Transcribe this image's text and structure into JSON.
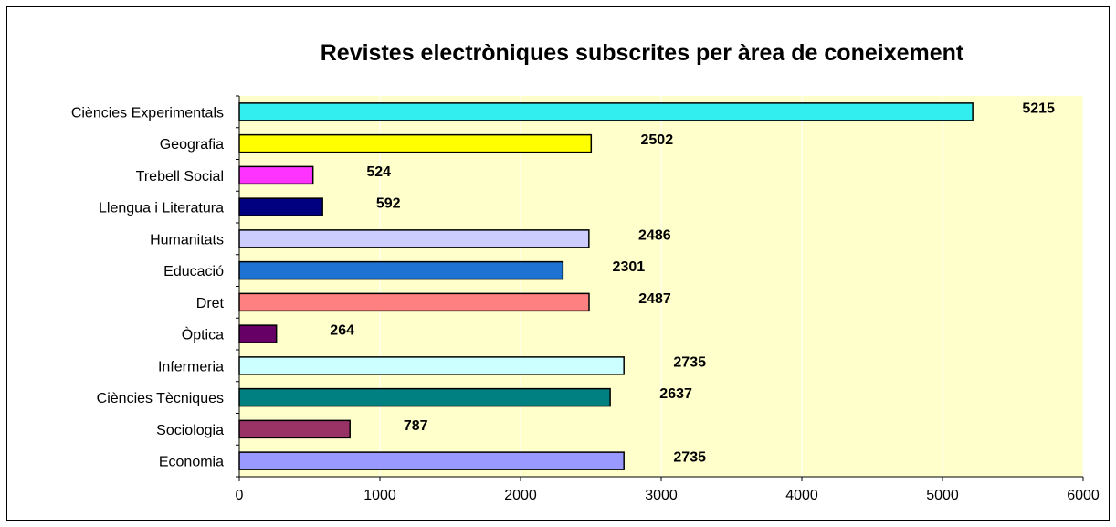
{
  "chart_data": {
    "type": "bar",
    "orientation": "horizontal",
    "title": "Revistes electròniques subscrites per àrea de coneixement",
    "xlabel": "",
    "ylabel": "",
    "xlim": [
      0,
      6000
    ],
    "xticks": [
      0,
      1000,
      2000,
      3000,
      4000,
      5000,
      6000
    ],
    "xtick_labels": [
      "0",
      "1000",
      "2000",
      "3000",
      "4000",
      "5000",
      "6000"
    ],
    "grid": "vertical",
    "legend": "none",
    "plot_background": "#FFFFCC",
    "categories": [
      "Ciències Experimentals",
      "Geografia",
      "Trebell Social",
      "Llengua i Literatura",
      "Humanitats",
      "Educació",
      "Dret",
      "Òptica",
      "Infermeria",
      "Ciències Tècniques",
      "Sociologia",
      "Economia"
    ],
    "values": [
      5215,
      2502,
      524,
      592,
      2486,
      2301,
      2487,
      264,
      2735,
      2637,
      787,
      2735
    ],
    "data_labels": [
      "5215",
      "2502",
      "524",
      "592",
      "2486",
      "2301",
      "2487",
      "264",
      "2735",
      "2637",
      "787",
      "2735"
    ],
    "colors": [
      "#33EEEE",
      "#FFFF00",
      "#FF33FF",
      "#000080",
      "#CCCCFF",
      "#1E73D2",
      "#FF8080",
      "#660066",
      "#CCFFFF",
      "#008080",
      "#993366",
      "#9999FF"
    ]
  }
}
